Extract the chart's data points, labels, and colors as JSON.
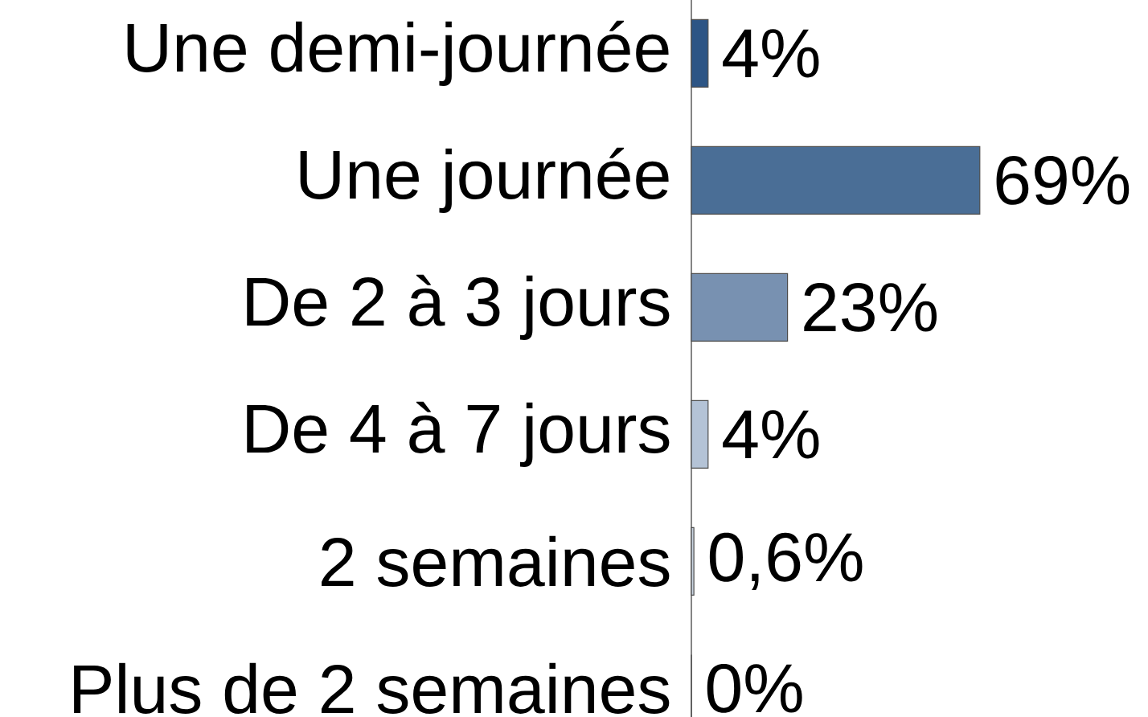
{
  "chart_data": {
    "type": "bar",
    "orientation": "horizontal",
    "categories": [
      "Une demi-journée",
      "Une journée",
      "De 2 à 3 jours",
      "De 4 à 7 jours",
      "2 semaines",
      "Plus de 2 semaines"
    ],
    "values": [
      4,
      69,
      23,
      4,
      0.6,
      0
    ],
    "value_labels": [
      "4%",
      "69%",
      "23%",
      "4%",
      "0,6%",
      "0%"
    ],
    "colors": [
      "#2d5585",
      "#4a6e96",
      "#7891b1",
      "#b4c3d6",
      "#c8d3e0",
      "#dce3ec"
    ],
    "tick_labels": "y"
  }
}
